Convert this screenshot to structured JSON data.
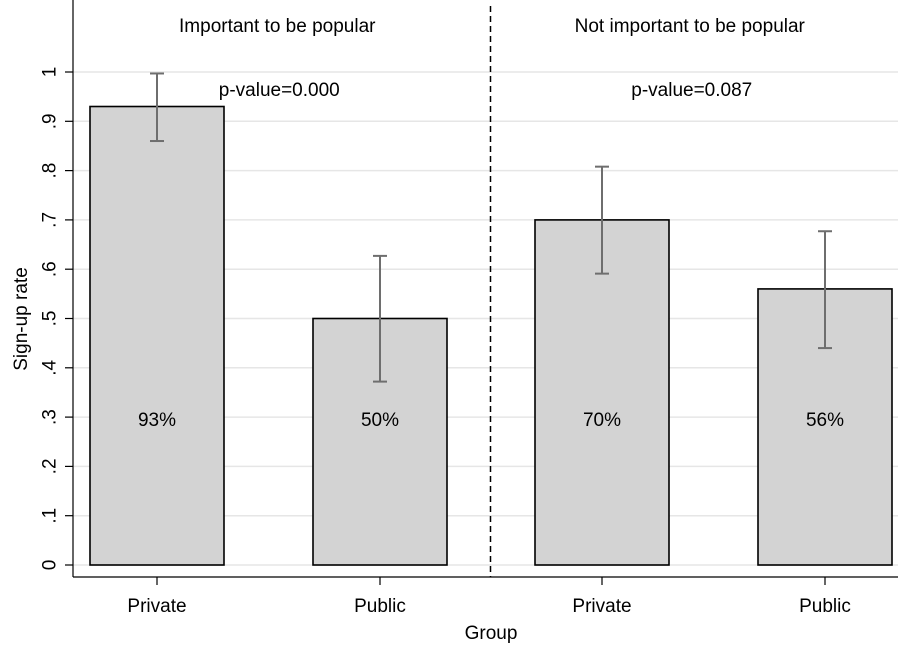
{
  "chart_data": {
    "type": "bar",
    "xlabel": "Group",
    "ylabel": "Sign-up rate",
    "ylim": [
      0,
      1
    ],
    "yticks": [
      {
        "value": 0,
        "label": "0"
      },
      {
        "value": 0.1,
        "label": ".1"
      },
      {
        "value": 0.2,
        "label": ".2"
      },
      {
        "value": 0.3,
        "label": ".3"
      },
      {
        "value": 0.4,
        "label": ".4"
      },
      {
        "value": 0.5,
        "label": ".5"
      },
      {
        "value": 0.6,
        "label": ".6"
      },
      {
        "value": 0.7,
        "label": ".7"
      },
      {
        "value": 0.8,
        "label": ".8"
      },
      {
        "value": 0.9,
        "label": ".9"
      },
      {
        "value": 1,
        "label": "1"
      }
    ],
    "grid": true,
    "panels": [
      {
        "title": "Important to be popular",
        "pvalue": "p-value=0.000",
        "bars": [
          {
            "category": "Private",
            "value": 0.93,
            "ci_low": 0.86,
            "ci_high": 0.997,
            "label": "93%"
          },
          {
            "category": "Public",
            "value": 0.5,
            "ci_low": 0.372,
            "ci_high": 0.627,
            "label": "50%"
          }
        ]
      },
      {
        "title": "Not important to be popular",
        "pvalue": "p-value=0.087",
        "bars": [
          {
            "category": "Private",
            "value": 0.7,
            "ci_low": 0.591,
            "ci_high": 0.808,
            "label": "70%"
          },
          {
            "category": "Public",
            "value": 0.56,
            "ci_low": 0.44,
            "ci_high": 0.677,
            "label": "56%"
          }
        ]
      }
    ]
  }
}
